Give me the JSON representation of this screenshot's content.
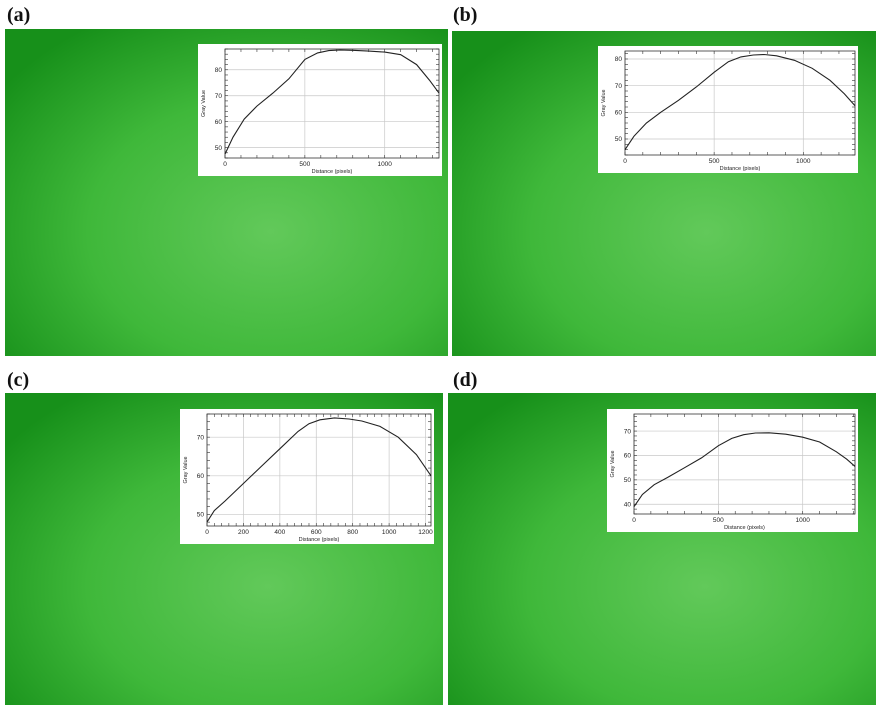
{
  "panels": [
    {
      "label": "(a)"
    },
    {
      "label": "(b)"
    },
    {
      "label": "(c)"
    },
    {
      "label": "(d)"
    }
  ],
  "colors": {
    "background_green": "#3fb83a",
    "bright_green": "#62c95a",
    "dark_green": "#17901a",
    "plot_line": "#222222",
    "grid": "#c8c8c8"
  },
  "chart_data": [
    {
      "type": "line",
      "title": "",
      "xlabel": "Distance (pixels)",
      "ylabel": "Gray Value",
      "xlim": [
        0,
        1340
      ],
      "ylim": [
        46,
        88
      ],
      "xticks": [
        0,
        500,
        1000
      ],
      "yticks": [
        50,
        60,
        70,
        80
      ],
      "x": [
        0,
        50,
        120,
        200,
        300,
        400,
        500,
        580,
        650,
        720,
        800,
        900,
        1000,
        1100,
        1200,
        1280,
        1340
      ],
      "y": [
        47.5,
        54,
        61,
        66,
        71,
        76.5,
        84,
        86.5,
        87.4,
        87.6,
        87.5,
        87.2,
        86.8,
        85.8,
        82,
        76,
        71
      ]
    },
    {
      "type": "line",
      "title": "",
      "xlabel": "Distance (pixels)",
      "ylabel": "Gray Value",
      "xlim": [
        0,
        1290
      ],
      "ylim": [
        44,
        83
      ],
      "xticks": [
        0,
        500,
        1000
      ],
      "yticks": [
        50,
        60,
        70,
        80
      ],
      "x": [
        0,
        50,
        120,
        200,
        300,
        400,
        500,
        580,
        650,
        720,
        780,
        850,
        950,
        1050,
        1150,
        1230,
        1290
      ],
      "y": [
        46,
        51,
        56,
        60,
        64.5,
        69.5,
        75,
        79,
        80.8,
        81.5,
        81.7,
        81.2,
        79.5,
        76.5,
        72,
        67,
        62.5
      ]
    },
    {
      "type": "line",
      "title": "",
      "xlabel": "Distance (pixels)",
      "ylabel": "Gray Value",
      "xlim": [
        0,
        1230
      ],
      "ylim": [
        47,
        76
      ],
      "xticks": [
        0,
        200,
        400,
        600,
        800,
        1000,
        1200
      ],
      "yticks": [
        50,
        60,
        70
      ],
      "x": [
        0,
        40,
        100,
        200,
        300,
        400,
        500,
        560,
        620,
        700,
        780,
        850,
        950,
        1050,
        1150,
        1230
      ],
      "y": [
        48,
        51,
        53.5,
        58,
        62.5,
        67,
        71.5,
        73.5,
        74.5,
        75,
        74.7,
        74.2,
        72.8,
        70,
        65.5,
        60
      ]
    },
    {
      "type": "line",
      "title": "",
      "xlabel": "Distance (pixels)",
      "ylabel": "Gray Value",
      "xlim": [
        0,
        1310
      ],
      "ylim": [
        36,
        77
      ],
      "xticks": [
        0,
        500,
        1000
      ],
      "yticks": [
        40,
        50,
        60,
        70
      ],
      "x": [
        0,
        50,
        120,
        200,
        300,
        400,
        500,
        580,
        650,
        720,
        800,
        900,
        1000,
        1100,
        1200,
        1260,
        1310
      ],
      "y": [
        39,
        44,
        48,
        51,
        55,
        59,
        64,
        67,
        68.5,
        69.2,
        69.3,
        68.7,
        67.5,
        65.5,
        61.5,
        58.5,
        55.5
      ]
    }
  ]
}
